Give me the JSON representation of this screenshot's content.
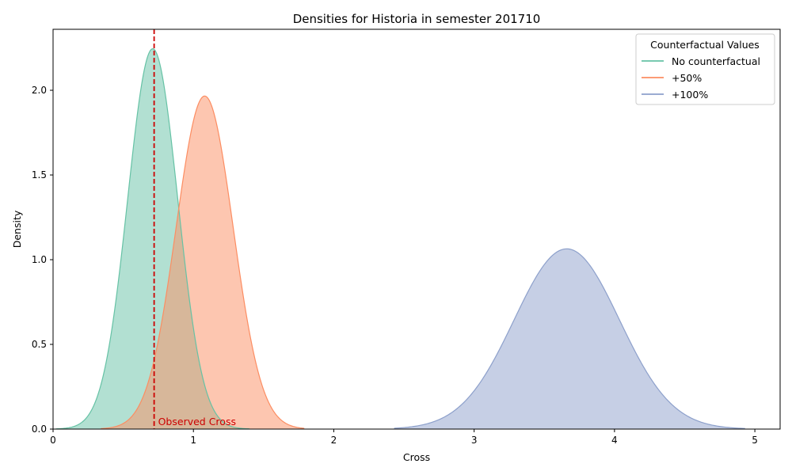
{
  "chart_data": {
    "type": "area",
    "title": "Densities for Historia in semester 201710",
    "xlabel": "Cross",
    "ylabel": "Density",
    "xlim": [
      0,
      5.18
    ],
    "ylim": [
      0,
      2.36
    ],
    "xticks": [
      0,
      1,
      2,
      3,
      4,
      5
    ],
    "xtick_labels": [
      "0",
      "1",
      "2",
      "3",
      "4",
      "5"
    ],
    "yticks": [
      0.0,
      0.5,
      1.0,
      1.5,
      2.0
    ],
    "ytick_labels": [
      "0.0",
      "0.5",
      "1.0",
      "1.5",
      "2.0"
    ],
    "grid": false,
    "legend": {
      "title": "Counterfactual Values",
      "placement": "top-right"
    },
    "series": [
      {
        "name": "No counterfactual",
        "color": "#66c2a5",
        "mean": 0.71,
        "sd": 0.178,
        "x_range": [
          0.02,
          1.4
        ],
        "peak": 2.245
      },
      {
        "name": "+50%",
        "color": "#fc8d62",
        "mean": 1.08,
        "sd": 0.203,
        "x_range": [
          0.34,
          1.79
        ],
        "peak": 1.966
      },
      {
        "name": "+100%",
        "color": "#8da0cb",
        "mean": 3.66,
        "sd": 0.375,
        "x_range": [
          2.43,
          4.93
        ],
        "peak": 1.064
      }
    ],
    "reference_line": {
      "x": 0.72,
      "color": "#cc0000",
      "label": "Observed Cross"
    }
  }
}
